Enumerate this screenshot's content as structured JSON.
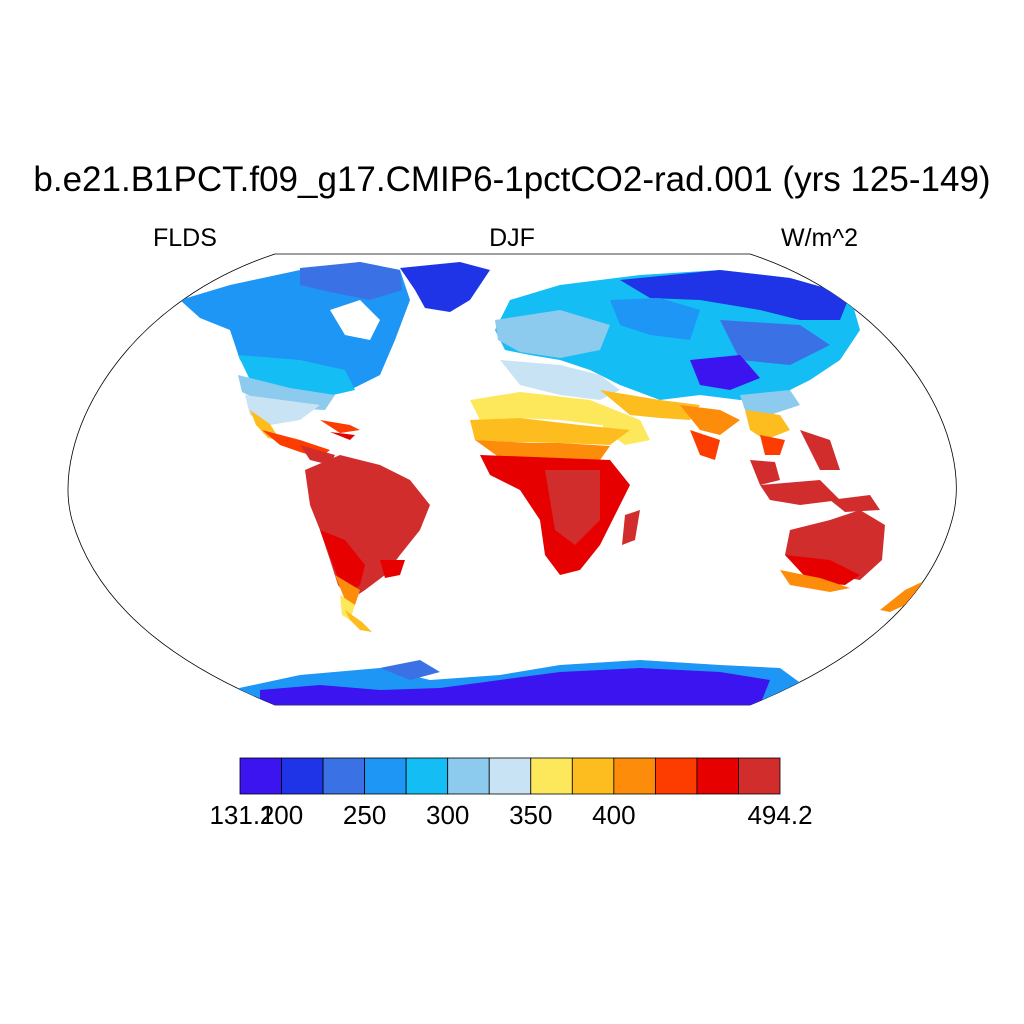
{
  "title": "b.e21.B1PCT.f09_g17.CMIP6-1pctCO2-rad.001 (yrs 125-149)",
  "left_label": "FLDS",
  "center_label": "DJF",
  "right_label": "W/m^2",
  "colorbar": {
    "colors": [
      "#3c14ef",
      "#1e34e6",
      "#3a72e6",
      "#1e96f5",
      "#14bef5",
      "#8ccaee",
      "#c8e4f4",
      "#fde75a",
      "#fdbd1e",
      "#fd8c0a",
      "#fd3c00",
      "#e60000",
      "#d22d2d"
    ],
    "labels": [
      "131.1",
      "200",
      "250",
      "300",
      "350",
      "400",
      "494.2"
    ]
  }
}
